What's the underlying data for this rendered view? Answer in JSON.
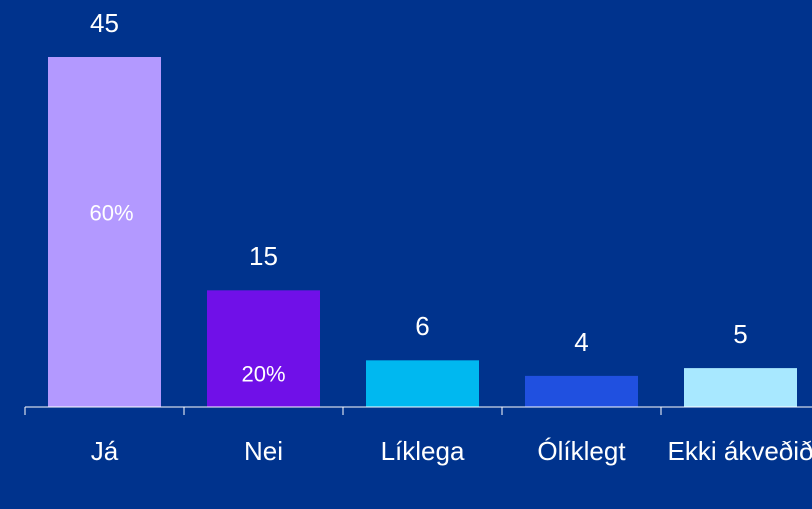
{
  "chart_data": {
    "type": "bar",
    "categories": [
      "Já",
      "Nei",
      "Líklega",
      "Ólíklegt",
      "Ekki ákveðið"
    ],
    "values": [
      45,
      15,
      6,
      4,
      5
    ],
    "colors": [
      "#b399ff",
      "#7010e8",
      "#00b8f0",
      "#2050e0",
      "#a8e8ff"
    ],
    "percent_labels": [
      "60%",
      "20%",
      null,
      null,
      null
    ]
  }
}
